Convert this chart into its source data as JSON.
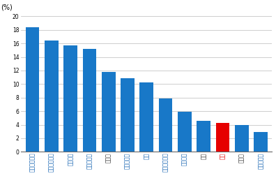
{
  "categories": [
    "アイルランド",
    "オーストリア",
    "ベルギー",
    "ノルウェー",
    "ロシア",
    "ハンガリー",
    "米国",
    "シンガポール",
    "イタリア",
    "台湾",
    "日本",
    "トルコ",
    "ポルトガル"
  ],
  "values": [
    18.4,
    16.4,
    15.7,
    15.2,
    11.8,
    10.9,
    10.2,
    7.9,
    5.9,
    4.6,
    4.3,
    4.0,
    2.9
  ],
  "bar_colors": [
    "#1878c8",
    "#1878c8",
    "#1878c8",
    "#1878c8",
    "#1878c8",
    "#1878c8",
    "#1878c8",
    "#1878c8",
    "#1878c8",
    "#1878c8",
    "#e60000",
    "#1878c8",
    "#1878c8"
  ],
  "label_colors": [
    "#1060b0",
    "#1060b0",
    "#1060b0",
    "#1060b0",
    "#333333",
    "#1060b0",
    "#1060b0",
    "#1060b0",
    "#1060b0",
    "#333333",
    "#e60000",
    "#333333",
    "#1060b0"
  ],
  "ylabel": "(%)",
  "ylim": [
    0,
    20
  ],
  "yticks": [
    0,
    2,
    4,
    6,
    8,
    10,
    12,
    14,
    16,
    18,
    20
  ],
  "grid_color": "#bbbbbb",
  "bg_color": "#ffffff",
  "label_fontsize": 5.5,
  "ylabel_fontsize": 7.0
}
